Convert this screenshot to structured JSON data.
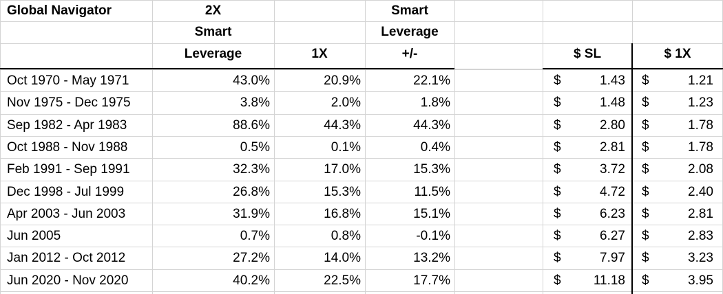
{
  "title": "Global Navigator",
  "headers": {
    "col2": [
      "2X",
      "Smart",
      "Leverage"
    ],
    "col3": [
      "",
      "",
      "1X"
    ],
    "col4": [
      "Smart",
      "Leverage",
      "+/-"
    ],
    "col5": "$ SL",
    "col6": "$ 1X"
  },
  "currency_symbol": "$",
  "rows": [
    {
      "period": "Oct 1970 - May 1971",
      "smart_2x": "43.0%",
      "one_x": "20.9%",
      "diff": "22.1%",
      "sl": "1.43",
      "x1": "1.21"
    },
    {
      "period": "Nov 1975 - Dec 1975",
      "smart_2x": "3.8%",
      "one_x": "2.0%",
      "diff": "1.8%",
      "sl": "1.48",
      "x1": "1.23"
    },
    {
      "period": "Sep 1982 - Apr 1983",
      "smart_2x": "88.6%",
      "one_x": "44.3%",
      "diff": "44.3%",
      "sl": "2.80",
      "x1": "1.78"
    },
    {
      "period": "Oct 1988 - Nov 1988",
      "smart_2x": "0.5%",
      "one_x": "0.1%",
      "diff": "0.4%",
      "sl": "2.81",
      "x1": "1.78"
    },
    {
      "period": "Feb 1991 - Sep 1991",
      "smart_2x": "32.3%",
      "one_x": "17.0%",
      "diff": "15.3%",
      "sl": "3.72",
      "x1": "2.08"
    },
    {
      "period": "Dec 1998 - Jul 1999",
      "smart_2x": "26.8%",
      "one_x": "15.3%",
      "diff": "11.5%",
      "sl": "4.72",
      "x1": "2.40"
    },
    {
      "period": "Apr 2003 - Jun 2003",
      "smart_2x": "31.9%",
      "one_x": "16.8%",
      "diff": "15.1%",
      "sl": "6.23",
      "x1": "2.81"
    },
    {
      "period": "Jun 2005",
      "smart_2x": "0.7%",
      "one_x": "0.8%",
      "diff": "-0.1%",
      "sl": "6.27",
      "x1": "2.83"
    },
    {
      "period": "Jan 2012 - Oct 2012",
      "smart_2x": "27.2%",
      "one_x": "14.0%",
      "diff": "13.2%",
      "sl": "7.97",
      "x1": "3.23"
    },
    {
      "period": "Jun 2020 - Nov 2020",
      "smart_2x": "40.2%",
      "one_x": "22.5%",
      "diff": "17.7%",
      "sl": "11.18",
      "x1": "3.95"
    }
  ]
}
